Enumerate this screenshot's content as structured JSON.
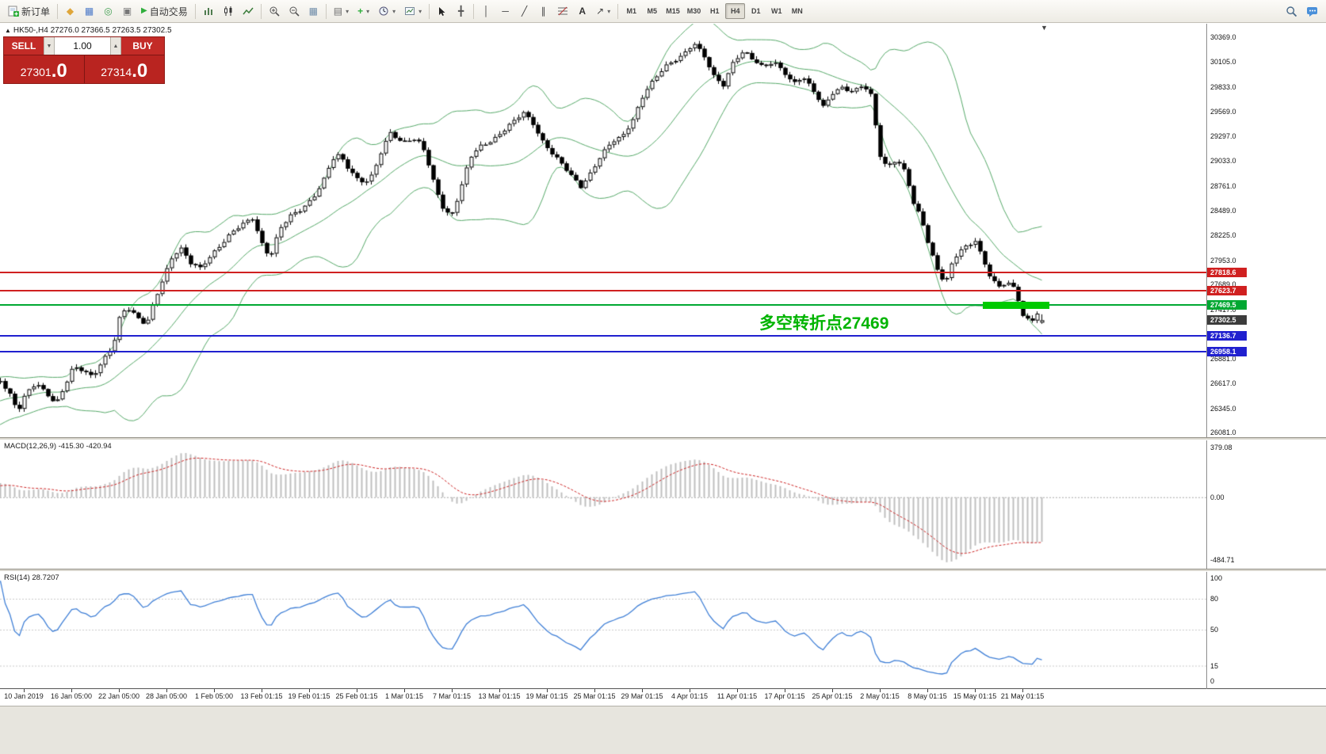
{
  "toolbar": {
    "new_order_label": "新订单",
    "auto_trading_label": "自动交易",
    "timeframes": [
      "M1",
      "M5",
      "M15",
      "M30",
      "H1",
      "H4",
      "D1",
      "W1",
      "MN"
    ],
    "active_timeframe": "H4"
  },
  "icons": {
    "market_watch": "◆",
    "data_window": "▦",
    "navigator": "◎",
    "terminal": "▣",
    "auto_play": "▶",
    "tile_windows": "▦",
    "profiles": "▤",
    "indicators_plus": "+",
    "crosshair": "╋",
    "vertical_line": "│",
    "horizontal_line": "─",
    "trendline": "╱",
    "channel": "∥",
    "text_tool": "A",
    "arrows_tool": "↗",
    "dropdown": "▾",
    "spinner_up": "▲",
    "spinner_down": "▼",
    "chart_shift": "▼",
    "header_marker": "▲"
  },
  "chart_header": {
    "symbol_timeframe": "HK50-,H4",
    "ohlc_text": "27276.0 27366.5 27263.5 27302.5"
  },
  "order_panel": {
    "sell_label": "SELL",
    "buy_label": "BUY",
    "lot_value": "1.00",
    "sell_price_int": "27301",
    "sell_price_dec": ".0",
    "buy_price_int": "27314",
    "buy_price_dec": ".0"
  },
  "annotation": {
    "text": "多空转折点27469",
    "color": "#00b400"
  },
  "chart_data": {
    "type": "candlestick",
    "symbol": "HK50-",
    "timeframe": "H4",
    "current_bar": {
      "open": 27276.0,
      "high": 27366.5,
      "low": 27263.5,
      "close": 27302.5
    },
    "price_axis_labels": [
      30369.0,
      30105.0,
      29833.0,
      29569.0,
      29297.0,
      29033.0,
      28761.0,
      28489.0,
      28225.0,
      27953.0,
      27689.0,
      27417.0,
      26881.0,
      26617.0,
      26345.0,
      26081.0
    ],
    "h_lines": [
      {
        "value": 27818.6,
        "label": "27818.6",
        "color": "#d02020",
        "line": true
      },
      {
        "value": 27623.7,
        "label": "27623.7",
        "color": "#d02020",
        "line": true
      },
      {
        "value": 27469.5,
        "label": "27469.5",
        "color": "#00a832",
        "line": true
      },
      {
        "value": 27302.5,
        "label": "27302.5",
        "color": "#3c3c3c",
        "line": false
      },
      {
        "value": 27136.7,
        "label": "27136.7",
        "color": "#2020cf",
        "line": true
      },
      {
        "value": 26958.1,
        "label": "26958.1",
        "color": "#2020cf",
        "line": true
      }
    ],
    "highlight_zone": {
      "value": 27469.5,
      "color": "#00ca00"
    },
    "bollinger": {
      "period": 20,
      "deviation": 2,
      "color": "#55a868"
    },
    "macd": {
      "label": "MACD(12,26,9) -415.30 -420.94",
      "scale": [
        {
          "v": 379.08,
          "t": "379.08"
        },
        {
          "v": 0,
          "t": "0.00"
        },
        {
          "v": -484.71,
          "t": "-484.71"
        }
      ]
    },
    "rsi": {
      "label": "RSI(14) 28.7207",
      "scale": [
        {
          "v": 100,
          "t": "100"
        },
        {
          "v": 80,
          "t": "80"
        },
        {
          "v": 50,
          "t": "50"
        },
        {
          "v": 15,
          "t": "15"
        },
        {
          "v": 0,
          "t": "0"
        }
      ],
      "levels": [
        80,
        50,
        15
      ]
    },
    "time_labels": [
      "10 Jan 2019",
      "16 Jan 05:00",
      "22 Jan 05:00",
      "28 Jan 05:00",
      "1 Feb 05:00",
      "13 Feb 01:15",
      "19 Feb 01:15",
      "25 Feb 01:15",
      "1 Mar 01:15",
      "7 Mar 01:15",
      "13 Mar 01:15",
      "19 Mar 01:15",
      "25 Mar 01:15",
      "29 Mar 01:15",
      "4 Apr 01:15",
      "11 Apr 01:15",
      "17 Apr 01:15",
      "25 Apr 01:15",
      "2 May 01:15",
      "8 May 01:15",
      "15 May 01:15",
      "21 May 01:15"
    ],
    "price_path": [
      [
        -150,
        26150
      ],
      [
        -110,
        26260
      ],
      [
        -70,
        26360
      ],
      [
        -35,
        26500
      ],
      [
        0,
        26660
      ],
      [
        12,
        26500
      ],
      [
        22,
        26310
      ],
      [
        32,
        26500
      ],
      [
        45,
        26620
      ],
      [
        58,
        26520
      ],
      [
        70,
        26400
      ],
      [
        82,
        26600
      ],
      [
        92,
        26790
      ],
      [
        104,
        26760
      ],
      [
        116,
        26700
      ],
      [
        130,
        26880
      ],
      [
        142,
        27010
      ],
      [
        152,
        27390
      ],
      [
        163,
        27430
      ],
      [
        174,
        27330
      ],
      [
        184,
        27260
      ],
      [
        194,
        27500
      ],
      [
        206,
        27760
      ],
      [
        218,
        28020
      ],
      [
        228,
        28090
      ],
      [
        240,
        27930
      ],
      [
        252,
        27860
      ],
      [
        265,
        27990
      ],
      [
        278,
        28130
      ],
      [
        292,
        28270
      ],
      [
        305,
        28340
      ],
      [
        318,
        28400
      ],
      [
        330,
        28130
      ],
      [
        340,
        27990
      ],
      [
        352,
        28300
      ],
      [
        366,
        28430
      ],
      [
        380,
        28500
      ],
      [
        394,
        28640
      ],
      [
        406,
        28800
      ],
      [
        418,
        29040
      ],
      [
        428,
        29090
      ],
      [
        440,
        28930
      ],
      [
        452,
        28830
      ],
      [
        465,
        28810
      ],
      [
        478,
        29070
      ],
      [
        492,
        29340
      ],
      [
        505,
        29240
      ],
      [
        518,
        29280
      ],
      [
        532,
        29210
      ],
      [
        545,
        28830
      ],
      [
        558,
        28530
      ],
      [
        568,
        28430
      ],
      [
        580,
        28710
      ],
      [
        592,
        29060
      ],
      [
        606,
        29190
      ],
      [
        620,
        29260
      ],
      [
        634,
        29360
      ],
      [
        648,
        29460
      ],
      [
        660,
        29550
      ],
      [
        672,
        29440
      ],
      [
        684,
        29250
      ],
      [
        696,
        29110
      ],
      [
        708,
        28990
      ],
      [
        720,
        28870
      ],
      [
        732,
        28760
      ],
      [
        745,
        28910
      ],
      [
        758,
        29090
      ],
      [
        772,
        29240
      ],
      [
        785,
        29310
      ],
      [
        798,
        29490
      ],
      [
        812,
        29760
      ],
      [
        825,
        29910
      ],
      [
        838,
        30060
      ],
      [
        850,
        30130
      ],
      [
        862,
        30190
      ],
      [
        875,
        30300
      ],
      [
        888,
        30160
      ],
      [
        900,
        29960
      ],
      [
        912,
        29860
      ],
      [
        925,
        30110
      ],
      [
        938,
        30210
      ],
      [
        950,
        30130
      ],
      [
        962,
        30060
      ],
      [
        975,
        30110
      ],
      [
        988,
        29990
      ],
      [
        1000,
        29860
      ],
      [
        1012,
        29960
      ],
      [
        1025,
        29810
      ],
      [
        1038,
        29610
      ],
      [
        1050,
        29760
      ],
      [
        1062,
        29830
      ],
      [
        1075,
        29790
      ],
      [
        1088,
        29860
      ],
      [
        1100,
        29710
      ],
      [
        1108,
        29110
      ],
      [
        1118,
        28960
      ],
      [
        1130,
        29060
      ],
      [
        1142,
        28910
      ],
      [
        1152,
        28560
      ],
      [
        1162,
        28390
      ],
      [
        1172,
        28090
      ],
      [
        1182,
        27860
      ],
      [
        1192,
        27710
      ],
      [
        1202,
        27960
      ],
      [
        1212,
        28060
      ],
      [
        1222,
        28110
      ],
      [
        1230,
        28170
      ],
      [
        1240,
        27960
      ],
      [
        1250,
        27760
      ],
      [
        1260,
        27660
      ],
      [
        1270,
        27710
      ],
      [
        1280,
        27630
      ],
      [
        1290,
        27360
      ],
      [
        1300,
        27290
      ],
      [
        1308,
        27390
      ],
      [
        1314,
        27302.5
      ]
    ]
  }
}
